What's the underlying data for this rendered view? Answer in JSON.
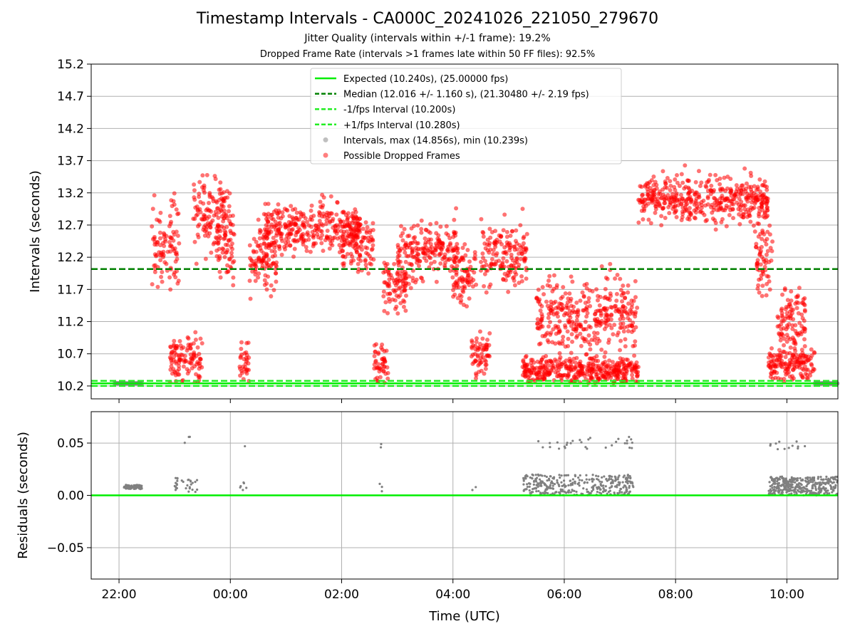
{
  "title": "Timestamp Intervals - CA000C_20241026_221050_279670",
  "subtitle_jitter": "Jitter Quality (intervals within +/-1 frame): 19.2%",
  "subtitle_dropped": "Dropped Frame Rate (intervals >1 frames late within 50 FF files): 92.5%",
  "colors": {
    "expected": "#00ee00",
    "median": "#008000",
    "fps_band": "#22ee22",
    "intervals": "#808080",
    "dropped": "#ff0000",
    "grid": "#b0b0b0"
  },
  "chart_data": [
    {
      "type": "scatter",
      "name": "intervals",
      "xlabel": "",
      "ylabel": "Intervals (seconds)",
      "xlim": [
        "21:30",
        "10:55"
      ],
      "ylim": [
        10.0,
        15.2
      ],
      "yticks": [
        "10.2",
        "10.7",
        "11.2",
        "11.7",
        "12.2",
        "12.7",
        "13.2",
        "13.7",
        "14.2",
        "14.7",
        "15.2"
      ],
      "grid": true,
      "legend_position": "top-center",
      "legend": [
        "Expected (10.240s), (25.00000 fps)",
        "Median (12.016 +/- 1.160 s), (21.30480 +/- 2.19 fps)",
        "-1/fps Interval (10.200s)",
        "+1/fps Interval (10.280s)",
        "Intervals, max (14.856s), min (10.239s)",
        "Possible Dropped Frames"
      ],
      "reference_lines": {
        "expected": 10.24,
        "median": 12.016,
        "minus_one_fps": 10.2,
        "plus_one_fps": 10.28
      },
      "stats": {
        "max": 14.856,
        "min": 10.239,
        "median_std": 1.16
      },
      "segments": [
        {
          "start": "21:55",
          "end": "22:25",
          "regime": "nominal"
        },
        {
          "start": "22:35",
          "end": "23:05",
          "center": 12.4,
          "spread": 0.65
        },
        {
          "start": "22:55",
          "end": "23:30",
          "center": 10.6,
          "spread": 0.35
        },
        {
          "start": "23:20",
          "end": "00:00",
          "center": 12.9,
          "spread": 0.55
        },
        {
          "start": "23:45",
          "end": "00:05",
          "center": 12.4,
          "spread": 0.55
        },
        {
          "start": "00:10",
          "end": "00:20",
          "center": 10.55,
          "spread": 0.3
        },
        {
          "start": "00:20",
          "end": "00:50",
          "center": 12.1,
          "spread": 0.55
        },
        {
          "start": "00:35",
          "end": "02:20",
          "center": 12.65,
          "spread": 0.35
        },
        {
          "start": "02:00",
          "end": "02:35",
          "center": 12.4,
          "spread": 0.45
        },
        {
          "start": "02:35",
          "end": "02:50",
          "center": 10.55,
          "spread": 0.35
        },
        {
          "start": "02:45",
          "end": "03:10",
          "center": 11.8,
          "spread": 0.45
        },
        {
          "start": "03:00",
          "end": "04:05",
          "center": 12.3,
          "spread": 0.45
        },
        {
          "start": "04:00",
          "end": "04:25",
          "center": 11.95,
          "spread": 0.45
        },
        {
          "start": "04:20",
          "end": "04:40",
          "center": 10.7,
          "spread": 0.35
        },
        {
          "start": "04:30",
          "end": "05:20",
          "center": 12.2,
          "spread": 0.5
        },
        {
          "start": "05:15",
          "end": "07:20",
          "center": 10.45,
          "spread": 0.2
        },
        {
          "start": "05:30",
          "end": "07:20",
          "center": 11.3,
          "spread": 0.55
        },
        {
          "start": "07:20",
          "end": "09:40",
          "center": 13.1,
          "spread": 0.35
        },
        {
          "start": "09:25",
          "end": "09:45",
          "center": 12.2,
          "spread": 0.55
        },
        {
          "start": "09:40",
          "end": "10:30",
          "center": 10.55,
          "spread": 0.28
        },
        {
          "start": "09:50",
          "end": "10:20",
          "center": 11.25,
          "spread": 0.45
        },
        {
          "start": "10:30",
          "end": "10:55",
          "regime": "nominal"
        }
      ]
    },
    {
      "type": "scatter",
      "name": "residuals",
      "xlabel": "Time (UTC)",
      "ylabel": "Residuals (seconds)",
      "xlim": [
        "21:30",
        "10:55"
      ],
      "ylim": [
        -0.08,
        0.08
      ],
      "yticks": [
        "−0.05",
        "0.00",
        "0.05"
      ],
      "xticks": [
        "22:00",
        "00:00",
        "02:00",
        "04:00",
        "06:00",
        "08:00",
        "10:00"
      ],
      "grid": true,
      "zero_line": 0.0,
      "clusters": [
        {
          "start": "22:05",
          "end": "22:25",
          "low": 0.006,
          "high": 0.01,
          "count": 70
        },
        {
          "start": "23:00",
          "end": "23:25",
          "low": 0.003,
          "high": 0.017,
          "count": 30
        },
        {
          "start": "23:10",
          "end": "23:20",
          "low": 0.05,
          "high": 0.056,
          "count": 3
        },
        {
          "start": "00:10",
          "end": "00:20",
          "low": 0.005,
          "high": 0.013,
          "count": 6
        },
        {
          "start": "00:15",
          "end": "00:20",
          "low": 0.045,
          "high": 0.047,
          "count": 1
        },
        {
          "start": "02:40",
          "end": "02:45",
          "low": 0.003,
          "high": 0.011,
          "count": 3
        },
        {
          "start": "02:40",
          "end": "02:45",
          "low": 0.045,
          "high": 0.053,
          "count": 2
        },
        {
          "start": "04:20",
          "end": "04:25",
          "low": 0.005,
          "high": 0.008,
          "count": 2
        },
        {
          "start": "05:15",
          "end": "07:15",
          "low": 0.0,
          "high": 0.02,
          "count": 330
        },
        {
          "start": "05:30",
          "end": "07:15",
          "low": 0.044,
          "high": 0.056,
          "count": 30
        },
        {
          "start": "09:40",
          "end": "10:55",
          "low": 0.0,
          "high": 0.018,
          "count": 360
        },
        {
          "start": "09:40",
          "end": "10:20",
          "low": 0.044,
          "high": 0.052,
          "count": 12
        }
      ]
    }
  ]
}
